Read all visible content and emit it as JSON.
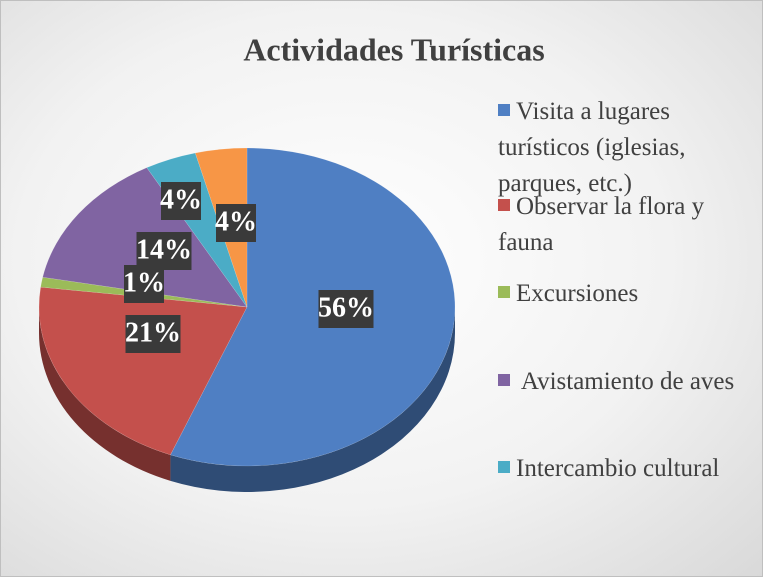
{
  "chart_data": {
    "type": "pie",
    "title": "Actividades Turísticas",
    "categories": [
      "Visita a lugares turísticos (iglesias, parques, etc.)",
      "Observar la flora y fauna",
      "Excursiones",
      " Avistamiento de aves",
      "Intercambio cultural",
      null
    ],
    "values": [
      56,
      21,
      1,
      14,
      4,
      4
    ],
    "value_labels": [
      "56%",
      "21%",
      "1%",
      "14%",
      "4%",
      "4%"
    ],
    "colors": [
      "#4f7fc3",
      "#c4504c",
      "#9bbb59",
      "#8064a2",
      "#4bacc6",
      "#f79646"
    ]
  }
}
